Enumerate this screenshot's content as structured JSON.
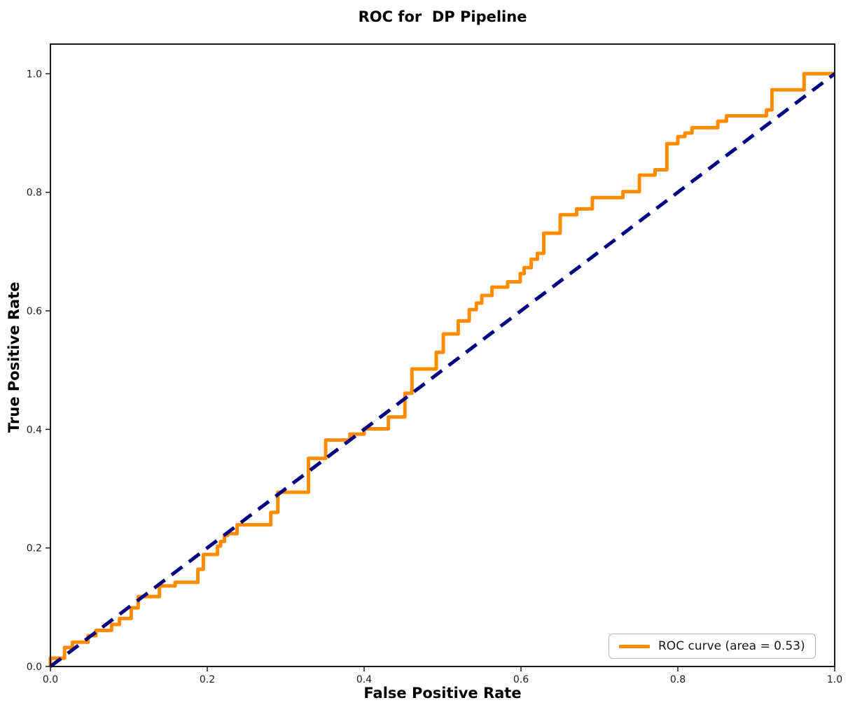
{
  "title": "ROC for  DP Pipeline",
  "axes": {
    "xlabel": "False Positive Rate",
    "ylabel": "True Positive Rate",
    "xticks": [
      "0.0",
      "0.2",
      "0.4",
      "0.6",
      "0.8",
      "1.0"
    ],
    "yticks": [
      "0.0",
      "0.2",
      "0.4",
      "0.6",
      "0.8",
      "1.0"
    ]
  },
  "legend": {
    "label": "ROC curve (area = 0.53)"
  },
  "colors": {
    "roc": "#FF8C00",
    "diagonal": "#000080",
    "spine": "#1a1a1a",
    "legend_border": "#b5b5b5"
  },
  "chart_data": {
    "type": "line",
    "title": "ROC for  DP Pipeline",
    "xlabel": "False Positive Rate",
    "ylabel": "True Positive Rate",
    "xlim": [
      0.0,
      1.0
    ],
    "ylim": [
      0.0,
      1.05
    ],
    "grid": false,
    "legend_position": "lower right",
    "auc": 0.53,
    "series": [
      {
        "name": "ROC curve (area = 0.53)",
        "style": "solid",
        "color": "#FF8C00",
        "points": [
          [
            0.0,
            0.0
          ],
          [
            0.0,
            0.014
          ],
          [
            0.018,
            0.014
          ],
          [
            0.018,
            0.032
          ],
          [
            0.028,
            0.032
          ],
          [
            0.028,
            0.041
          ],
          [
            0.048,
            0.041
          ],
          [
            0.048,
            0.052
          ],
          [
            0.058,
            0.052
          ],
          [
            0.058,
            0.061
          ],
          [
            0.078,
            0.061
          ],
          [
            0.078,
            0.071
          ],
          [
            0.088,
            0.071
          ],
          [
            0.088,
            0.081
          ],
          [
            0.103,
            0.081
          ],
          [
            0.103,
            0.099
          ],
          [
            0.112,
            0.099
          ],
          [
            0.112,
            0.118
          ],
          [
            0.139,
            0.118
          ],
          [
            0.139,
            0.136
          ],
          [
            0.159,
            0.136
          ],
          [
            0.159,
            0.142
          ],
          [
            0.188,
            0.142
          ],
          [
            0.188,
            0.164
          ],
          [
            0.195,
            0.164
          ],
          [
            0.195,
            0.189
          ],
          [
            0.213,
            0.189
          ],
          [
            0.213,
            0.203
          ],
          [
            0.217,
            0.203
          ],
          [
            0.217,
            0.211
          ],
          [
            0.222,
            0.211
          ],
          [
            0.222,
            0.221
          ],
          [
            0.226,
            0.221
          ],
          [
            0.226,
            0.224
          ],
          [
            0.238,
            0.224
          ],
          [
            0.238,
            0.239
          ],
          [
            0.281,
            0.239
          ],
          [
            0.281,
            0.26
          ],
          [
            0.29,
            0.26
          ],
          [
            0.29,
            0.294
          ],
          [
            0.329,
            0.294
          ],
          [
            0.329,
            0.351
          ],
          [
            0.351,
            0.351
          ],
          [
            0.351,
            0.382
          ],
          [
            0.382,
            0.382
          ],
          [
            0.382,
            0.392
          ],
          [
            0.4,
            0.392
          ],
          [
            0.4,
            0.401
          ],
          [
            0.431,
            0.401
          ],
          [
            0.431,
            0.421
          ],
          [
            0.452,
            0.421
          ],
          [
            0.452,
            0.461
          ],
          [
            0.461,
            0.461
          ],
          [
            0.461,
            0.502
          ],
          [
            0.492,
            0.502
          ],
          [
            0.492,
            0.53
          ],
          [
            0.501,
            0.53
          ],
          [
            0.501,
            0.561
          ],
          [
            0.52,
            0.561
          ],
          [
            0.52,
            0.583
          ],
          [
            0.534,
            0.583
          ],
          [
            0.534,
            0.602
          ],
          [
            0.543,
            0.602
          ],
          [
            0.543,
            0.613
          ],
          [
            0.55,
            0.613
          ],
          [
            0.55,
            0.626
          ],
          [
            0.563,
            0.626
          ],
          [
            0.563,
            0.64
          ],
          [
            0.583,
            0.64
          ],
          [
            0.583,
            0.649
          ],
          [
            0.599,
            0.649
          ],
          [
            0.599,
            0.663
          ],
          [
            0.604,
            0.663
          ],
          [
            0.604,
            0.673
          ],
          [
            0.613,
            0.673
          ],
          [
            0.613,
            0.687
          ],
          [
            0.621,
            0.687
          ],
          [
            0.621,
            0.697
          ],
          [
            0.629,
            0.697
          ],
          [
            0.629,
            0.731
          ],
          [
            0.65,
            0.731
          ],
          [
            0.65,
            0.762
          ],
          [
            0.671,
            0.762
          ],
          [
            0.671,
            0.772
          ],
          [
            0.691,
            0.772
          ],
          [
            0.691,
            0.791
          ],
          [
            0.73,
            0.791
          ],
          [
            0.73,
            0.801
          ],
          [
            0.751,
            0.801
          ],
          [
            0.751,
            0.829
          ],
          [
            0.771,
            0.829
          ],
          [
            0.771,
            0.838
          ],
          [
            0.786,
            0.838
          ],
          [
            0.786,
            0.882
          ],
          [
            0.8,
            0.882
          ],
          [
            0.8,
            0.894
          ],
          [
            0.809,
            0.894
          ],
          [
            0.809,
            0.9
          ],
          [
            0.818,
            0.9
          ],
          [
            0.818,
            0.909
          ],
          [
            0.851,
            0.909
          ],
          [
            0.851,
            0.92
          ],
          [
            0.862,
            0.92
          ],
          [
            0.862,
            0.929
          ],
          [
            0.913,
            0.929
          ],
          [
            0.913,
            0.939
          ],
          [
            0.92,
            0.939
          ],
          [
            0.92,
            0.973
          ],
          [
            0.961,
            0.973
          ],
          [
            0.961,
            1.0
          ],
          [
            1.0,
            1.0
          ]
        ]
      },
      {
        "name": "chance diagonal",
        "style": "dashed",
        "color": "#000080",
        "points": [
          [
            0.0,
            0.0
          ],
          [
            1.0,
            1.0
          ]
        ]
      }
    ]
  }
}
